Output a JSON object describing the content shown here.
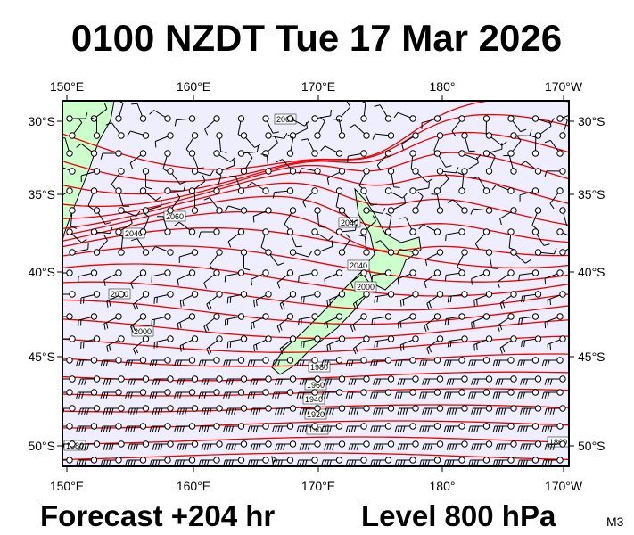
{
  "title": "0100 NZDT Tue 17 Mar 2026",
  "map": {
    "top_labels": [
      "150°E",
      "160°E",
      "170°E",
      "180°",
      "170°W"
    ],
    "bottom_labels": [
      "150°E",
      "160°E",
      "170°E",
      "180°",
      "170°W"
    ],
    "left_labels": [
      "30°S",
      "35°S",
      "40°S",
      "45°S",
      "50°S"
    ],
    "right_labels": [
      "30°S",
      "35°S",
      "40°S",
      "45°S",
      "50°S"
    ],
    "contour_labels": [
      "2060",
      "2060",
      "2040",
      "2040",
      "2040",
      "2020",
      "2000",
      "2000",
      "1980",
      "1960",
      "1940",
      "1920",
      "1900",
      "1880",
      "1860"
    ]
  },
  "footer": {
    "forecast": "Forecast +204 hr",
    "level": "Level 800 hPa",
    "model": "M3"
  }
}
